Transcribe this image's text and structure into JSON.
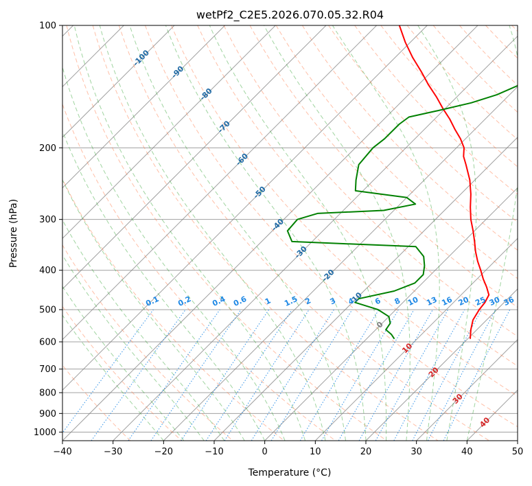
{
  "chart_data": {
    "type": "line",
    "subtype": "skew-t log-p diagram",
    "title": "wetPf2_C2E5.2026.070.05.32.R04",
    "xlabel": "Temperature (°C)",
    "ylabel": "Pressure (hPa)",
    "xlim": [
      -40,
      50
    ],
    "ylim": [
      1050,
      100
    ],
    "y_scale": "log",
    "x_ticks": [
      -40,
      -30,
      -20,
      -10,
      0,
      10,
      20,
      30,
      40,
      50
    ],
    "y_ticks": [
      100,
      200,
      300,
      400,
      500,
      600,
      700,
      800,
      900,
      1000
    ],
    "grid": true,
    "series": [
      {
        "role": "temperature",
        "color": "#ff0000",
        "points": [
          {
            "p": 590,
            "t": 20.5
          },
          {
            "p": 560,
            "t": 18.8
          },
          {
            "p": 530,
            "t": 17.3
          },
          {
            "p": 500,
            "t": 16.5
          },
          {
            "p": 480,
            "t": 16.2
          },
          {
            "p": 460,
            "t": 15.5
          },
          {
            "p": 440,
            "t": 13.5
          },
          {
            "p": 420,
            "t": 11.2
          },
          {
            "p": 400,
            "t": 9.0
          },
          {
            "p": 380,
            "t": 6.6
          },
          {
            "p": 360,
            "t": 4.3
          },
          {
            "p": 340,
            "t": 2.1
          },
          {
            "p": 320,
            "t": -0.3
          },
          {
            "p": 300,
            "t": -3.0
          },
          {
            "p": 280,
            "t": -5.5
          },
          {
            "p": 260,
            "t": -8.0
          },
          {
            "p": 240,
            "t": -11.0
          },
          {
            "p": 220,
            "t": -14.8
          },
          {
            "p": 210,
            "t": -16.9
          },
          {
            "p": 200,
            "t": -18.5
          },
          {
            "p": 190,
            "t": -21.0
          },
          {
            "p": 180,
            "t": -24.0
          },
          {
            "p": 170,
            "t": -27.0
          },
          {
            "p": 160,
            "t": -30.5
          },
          {
            "p": 150,
            "t": -34.0
          },
          {
            "p": 140,
            "t": -38.0
          },
          {
            "p": 130,
            "t": -42.0
          },
          {
            "p": 120,
            "t": -46.5
          },
          {
            "p": 110,
            "t": -51.0
          },
          {
            "p": 100,
            "t": -55.5
          }
        ]
      },
      {
        "role": "dewpoint",
        "color": "#008000",
        "points": [
          {
            "p": 590,
            "t": 5.5
          },
          {
            "p": 575,
            "t": 4.0
          },
          {
            "p": 560,
            "t": 2.0
          },
          {
            "p": 540,
            "t": 1.6
          },
          {
            "p": 520,
            "t": 0.0
          },
          {
            "p": 500,
            "t": -3.5
          },
          {
            "p": 480,
            "t": -9.5
          },
          {
            "p": 470,
            "t": -9.5
          },
          {
            "p": 450,
            "t": -4.0
          },
          {
            "p": 430,
            "t": -1.5
          },
          {
            "p": 410,
            "t": -1.5
          },
          {
            "p": 390,
            "t": -3.0
          },
          {
            "p": 370,
            "t": -5.0
          },
          {
            "p": 350,
            "t": -8.5
          },
          {
            "p": 340,
            "t": -34.0
          },
          {
            "p": 320,
            "t": -37.0
          },
          {
            "p": 300,
            "t": -37.3
          },
          {
            "p": 290,
            "t": -34.5
          },
          {
            "p": 285,
            "t": -22.0
          },
          {
            "p": 275,
            "t": -17.0
          },
          {
            "p": 265,
            "t": -20.0
          },
          {
            "p": 255,
            "t": -31.5
          },
          {
            "p": 240,
            "t": -33.5
          },
          {
            "p": 220,
            "t": -36.0
          },
          {
            "p": 200,
            "t": -36.5
          },
          {
            "p": 190,
            "t": -36.0
          },
          {
            "p": 175,
            "t": -36.0
          },
          {
            "p": 168,
            "t": -35.5
          },
          {
            "p": 162,
            "t": -31.0
          },
          {
            "p": 155,
            "t": -26.0
          },
          {
            "p": 148,
            "t": -22.5
          },
          {
            "p": 140,
            "t": -20.0
          },
          {
            "p": 130,
            "t": -20.0
          },
          {
            "p": 120,
            "t": -21.5
          },
          {
            "p": 110,
            "t": -24.0
          },
          {
            "p": 100,
            "t": -26.5
          }
        ]
      }
    ],
    "isotherm_labels": [
      {
        "text": "-100"
      },
      {
        "text": "-90"
      },
      {
        "text": "-80"
      },
      {
        "text": "-70"
      },
      {
        "text": "-60"
      },
      {
        "text": "-50"
      },
      {
        "text": "-40"
      },
      {
        "text": "-30"
      },
      {
        "text": "-20"
      },
      {
        "text": "-10"
      },
      {
        "text": "0"
      },
      {
        "text": "10"
      },
      {
        "text": "20"
      },
      {
        "text": "30"
      },
      {
        "text": "40"
      }
    ],
    "mixing_ratio_labels": [
      "0.1",
      "0.2",
      "0.4",
      "0.6",
      "1",
      "1.5",
      "2",
      "3",
      "4",
      "6",
      "8",
      "10",
      "13",
      "16",
      "20",
      "25",
      "30",
      "36"
    ],
    "colors": {
      "isotherm": "#808080",
      "dry_adiabat": "#ff7f50",
      "moist_adiabat": "#2ca02c",
      "mixing_ratio": "#1e88e5",
      "label_dark": "#1f6aa5",
      "label_red": "#d62728",
      "label_grey": "#7f7f7f",
      "isobar": "#a0a0a0",
      "tan_curve": "#d2b48c"
    }
  }
}
